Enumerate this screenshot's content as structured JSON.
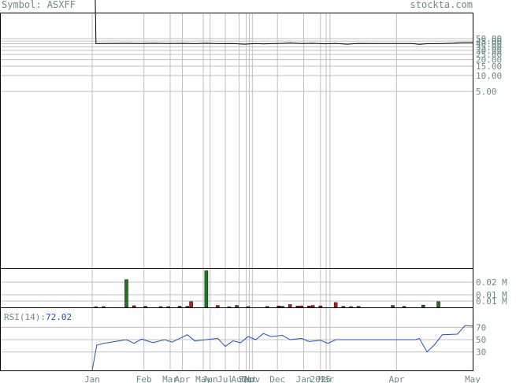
{
  "header": {
    "symbol_text": "Symbol: ASXFF",
    "site": "stockta.com"
  },
  "colors": {
    "price_line": "#000000",
    "grid": "#c0c0c0",
    "volume_up": "#1e7a1e",
    "volume_down": "#dd1111",
    "rsi_line": "#2050c0",
    "label": "#6a8a8a"
  },
  "chart_data": [
    {
      "type": "line",
      "panel": "price",
      "y_scale": "log",
      "ylim": [
        0,
        50
      ],
      "y_ticks": [
        "50.00",
        "45.00",
        "40.00",
        "35.00",
        "30.00",
        "25.00",
        "20.00",
        "15.00",
        "10.00",
        "5.00"
      ],
      "x_tick_labels": [
        "Jan",
        "Feb",
        "Mar",
        "Apr",
        "May",
        "Jun",
        "Jul",
        "Aug",
        "Sep",
        "Oct",
        "Nov",
        "Dec",
        "Jan",
        "2025",
        "Mar",
        "Apr",
        "May"
      ],
      "series": [
        {
          "points": [
            [
              0.0,
              2000
            ],
            [
              0.008,
              2000
            ],
            [
              0.01,
              40.2
            ],
            [
              0.05,
              40.5
            ],
            [
              0.09,
              40.6
            ],
            [
              0.13,
              40.4
            ],
            [
              0.16,
              40.9
            ],
            [
              0.2,
              40.3
            ],
            [
              0.24,
              40.6
            ],
            [
              0.27,
              40.2
            ],
            [
              0.3,
              40.8
            ],
            [
              0.33,
              40.1
            ],
            [
              0.37,
              40.4
            ],
            [
              0.4,
              39.2
            ],
            [
              0.43,
              40.3
            ],
            [
              0.45,
              39.6
            ],
            [
              0.47,
              40.1
            ],
            [
              0.5,
              40.6
            ],
            [
              0.52,
              41.3
            ],
            [
              0.55,
              40.4
            ],
            [
              0.58,
              40.9
            ],
            [
              0.61,
              39.9
            ],
            [
              0.64,
              40.5
            ],
            [
              0.67,
              39.1
            ],
            [
              0.7,
              40.5
            ],
            [
              0.75,
              40.4
            ],
            [
              0.8,
              40.4
            ],
            [
              0.84,
              40.3
            ],
            [
              0.86,
              39.0
            ],
            [
              0.88,
              40.0
            ],
            [
              0.92,
              40.4
            ],
            [
              0.95,
              41.0
            ],
            [
              0.97,
              42.0
            ],
            [
              1.0,
              42.1
            ]
          ]
        }
      ]
    },
    {
      "type": "bar",
      "panel": "volume",
      "y_ticks": [
        "0.02 M",
        "0.01 M",
        "0.01 M"
      ],
      "ylim": [
        0,
        0.03
      ],
      "series": [
        {
          "name": "up",
          "bars": [
            [
              0.01,
              0.0005
            ],
            [
              0.09,
              0.022
            ],
            [
              0.3,
              0.029
            ],
            [
              0.38,
              0.0015
            ],
            [
              0.7,
              0.0008
            ],
            [
              0.79,
              0.0015
            ],
            [
              0.87,
              0.0018
            ],
            [
              0.91,
              0.0045
            ]
          ]
        },
        {
          "name": "down",
          "bars": [
            [
              0.03,
              0.0006
            ],
            [
              0.11,
              0.0013
            ],
            [
              0.14,
              0.0008
            ],
            [
              0.18,
              0.0006
            ],
            [
              0.2,
              0.0006
            ],
            [
              0.23,
              0.0009
            ],
            [
              0.25,
              0.0008
            ],
            [
              0.26,
              0.0045
            ],
            [
              0.33,
              0.0015
            ],
            [
              0.36,
              0.0005
            ],
            [
              0.41,
              0.0006
            ],
            [
              0.46,
              0.0007
            ],
            [
              0.49,
              0.0011
            ],
            [
              0.5,
              0.0008
            ],
            [
              0.52,
              0.0022
            ],
            [
              0.54,
              0.001
            ],
            [
              0.55,
              0.0012
            ],
            [
              0.57,
              0.0011
            ],
            [
              0.58,
              0.0015
            ],
            [
              0.6,
              0.0012
            ],
            [
              0.64,
              0.0038
            ],
            [
              0.66,
              0.0008
            ],
            [
              0.68,
              0.0006
            ],
            [
              0.82,
              0.0008
            ]
          ]
        }
      ]
    },
    {
      "type": "line",
      "panel": "rsi",
      "label": "RSI(14):",
      "value_text": "72.02",
      "ylim": [
        0,
        100
      ],
      "y_ticks": [
        "70",
        "50",
        "30"
      ],
      "series": [
        {
          "points": [
            [
              0.0,
              0
            ],
            [
              0.012,
              41
            ],
            [
              0.03,
              44
            ],
            [
              0.06,
              47
            ],
            [
              0.09,
              50
            ],
            [
              0.11,
              44
            ],
            [
              0.13,
              51
            ],
            [
              0.16,
              45
            ],
            [
              0.19,
              50
            ],
            [
              0.21,
              46
            ],
            [
              0.23,
              52
            ],
            [
              0.25,
              58
            ],
            [
              0.27,
              48
            ],
            [
              0.3,
              50
            ],
            [
              0.33,
              52
            ],
            [
              0.35,
              39
            ],
            [
              0.37,
              48
            ],
            [
              0.39,
              45
            ],
            [
              0.41,
              55
            ],
            [
              0.43,
              50
            ],
            [
              0.45,
              60
            ],
            [
              0.47,
              55
            ],
            [
              0.5,
              57
            ],
            [
              0.52,
              50
            ],
            [
              0.55,
              52
            ],
            [
              0.57,
              47
            ],
            [
              0.6,
              49
            ],
            [
              0.62,
              44
            ],
            [
              0.64,
              50
            ],
            [
              0.66,
              50
            ],
            [
              0.85,
              50
            ],
            [
              0.86,
              52
            ],
            [
              0.88,
              30
            ],
            [
              0.9,
              42
            ],
            [
              0.92,
              58
            ],
            [
              0.96,
              59
            ],
            [
              0.98,
              73
            ],
            [
              1.0,
              72
            ]
          ]
        }
      ]
    }
  ]
}
